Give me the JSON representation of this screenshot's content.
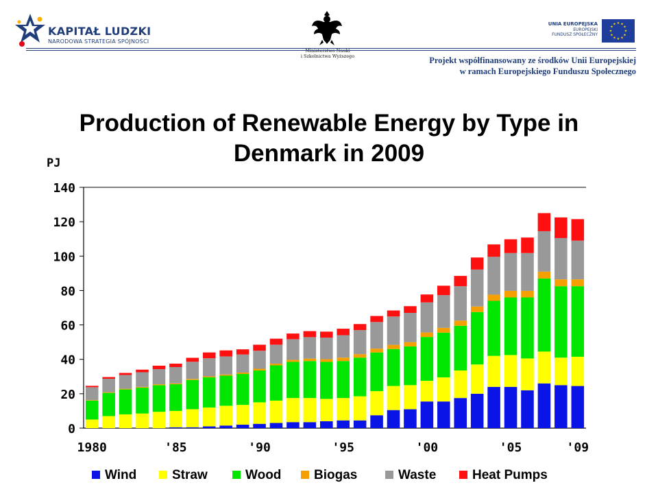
{
  "header": {
    "left_logo": {
      "title": "KAPITAŁ LUDZKI",
      "subtitle": "NARODOWA STRATEGIA SPÓJNOŚCI"
    },
    "ministry": {
      "line1": "Ministerstwo Nauki",
      "line2": "i Szkolnictwa Wyższego"
    },
    "eu": {
      "line1": "UNIA EUROPEJSKA",
      "line2": "EUROPEJSKI",
      "line3": "FUNDUSZ SPOŁECZNY"
    },
    "project": {
      "line1": "Projekt współfinansowany ze środków Unii Europejskiej",
      "line2": "w ramach Europejskiego Funduszu Społecznego"
    }
  },
  "colors": {
    "Wind": "#0a14e6",
    "Straw": "#ffff00",
    "Wood": "#00e600",
    "Biogas": "#f5a000",
    "Waste": "#999999",
    "Heat Pumps": "#ff1010",
    "brand_blue": "#1f3d7a"
  },
  "chart_data": {
    "type": "bar",
    "stacked": true,
    "title": "Production of Renewable Energy by Type in Denmark in 2009",
    "ylabel": "PJ",
    "ylim": [
      0,
      140
    ],
    "yticks": [
      0,
      20,
      40,
      60,
      80,
      100,
      120,
      140
    ],
    "xtick_labels": [
      {
        "year": 1980,
        "label": "1980"
      },
      {
        "year": 1985,
        "label": "'85"
      },
      {
        "year": 1990,
        "label": "'90"
      },
      {
        "year": 1995,
        "label": "'95"
      },
      {
        "year": 2000,
        "label": "'00"
      },
      {
        "year": 2005,
        "label": "'05"
      },
      {
        "year": 2009,
        "label": "'09"
      }
    ],
    "categories": [
      1980,
      1981,
      1982,
      1983,
      1984,
      1985,
      1986,
      1987,
      1988,
      1989,
      1990,
      1991,
      1992,
      1993,
      1994,
      1995,
      1996,
      1997,
      1998,
      1999,
      2000,
      2001,
      2002,
      2003,
      2004,
      2005,
      2006,
      2007,
      2008,
      2009
    ],
    "series": [
      {
        "name": "Wind",
        "values": [
          0,
          0,
          0,
          0,
          0,
          0.5,
          0.5,
          1,
          1.5,
          2,
          2.5,
          3,
          3.5,
          3.5,
          4,
          4.5,
          4.5,
          7.5,
          10.5,
          11,
          15.5,
          15.5,
          17.5,
          20,
          24,
          24,
          22,
          26,
          25,
          24.5
        ]
      },
      {
        "name": "Straw",
        "values": [
          5,
          7,
          8,
          8.5,
          9.5,
          9.5,
          10.5,
          11,
          11.5,
          11.5,
          12.5,
          13,
          14,
          14,
          13,
          13,
          14,
          14,
          14,
          14,
          12,
          14,
          16,
          17,
          18,
          18.5,
          18.5,
          18.5,
          16,
          17
        ]
      },
      {
        "name": "Wood",
        "values": [
          11,
          13.5,
          14.5,
          15,
          15.5,
          15.5,
          17,
          17.5,
          17.5,
          18,
          18.5,
          20.5,
          21,
          21.5,
          21.5,
          21.5,
          22.5,
          22.5,
          21.5,
          22.5,
          25.5,
          26,
          26,
          30.5,
          32,
          33.5,
          35.5,
          42.5,
          41.5,
          41
        ]
      },
      {
        "name": "Biogas",
        "values": [
          0.3,
          0.4,
          0.4,
          0.5,
          0.5,
          0.5,
          0.6,
          0.6,
          0.7,
          0.8,
          1,
          1,
          1.2,
          1.4,
          1.6,
          2,
          2,
          2.2,
          2.4,
          2.5,
          2.6,
          2.8,
          3,
          3.2,
          3.6,
          3.8,
          3.8,
          4,
          4,
          4
        ]
      },
      {
        "name": "Waste",
        "values": [
          7.5,
          7.8,
          8,
          8.5,
          8.8,
          9.5,
          10,
          10.5,
          10.5,
          10.5,
          10.5,
          11,
          12,
          12.5,
          12.5,
          13,
          14,
          15.5,
          16.5,
          17,
          17.5,
          19,
          20,
          21.5,
          22,
          22,
          22,
          23.5,
          24,
          22.5
        ]
      },
      {
        "name": "Heat Pumps",
        "values": [
          0.8,
          1,
          1.2,
          1.5,
          2,
          2,
          2.3,
          3.4,
          3.5,
          3,
          3.5,
          3.5,
          3.3,
          3.5,
          3.5,
          3.8,
          3.5,
          3.5,
          3.5,
          3.9,
          4.6,
          5.5,
          6,
          7,
          7.2,
          8,
          9,
          10.5,
          12,
          12.5
        ]
      }
    ],
    "legend_position": "bottom"
  }
}
